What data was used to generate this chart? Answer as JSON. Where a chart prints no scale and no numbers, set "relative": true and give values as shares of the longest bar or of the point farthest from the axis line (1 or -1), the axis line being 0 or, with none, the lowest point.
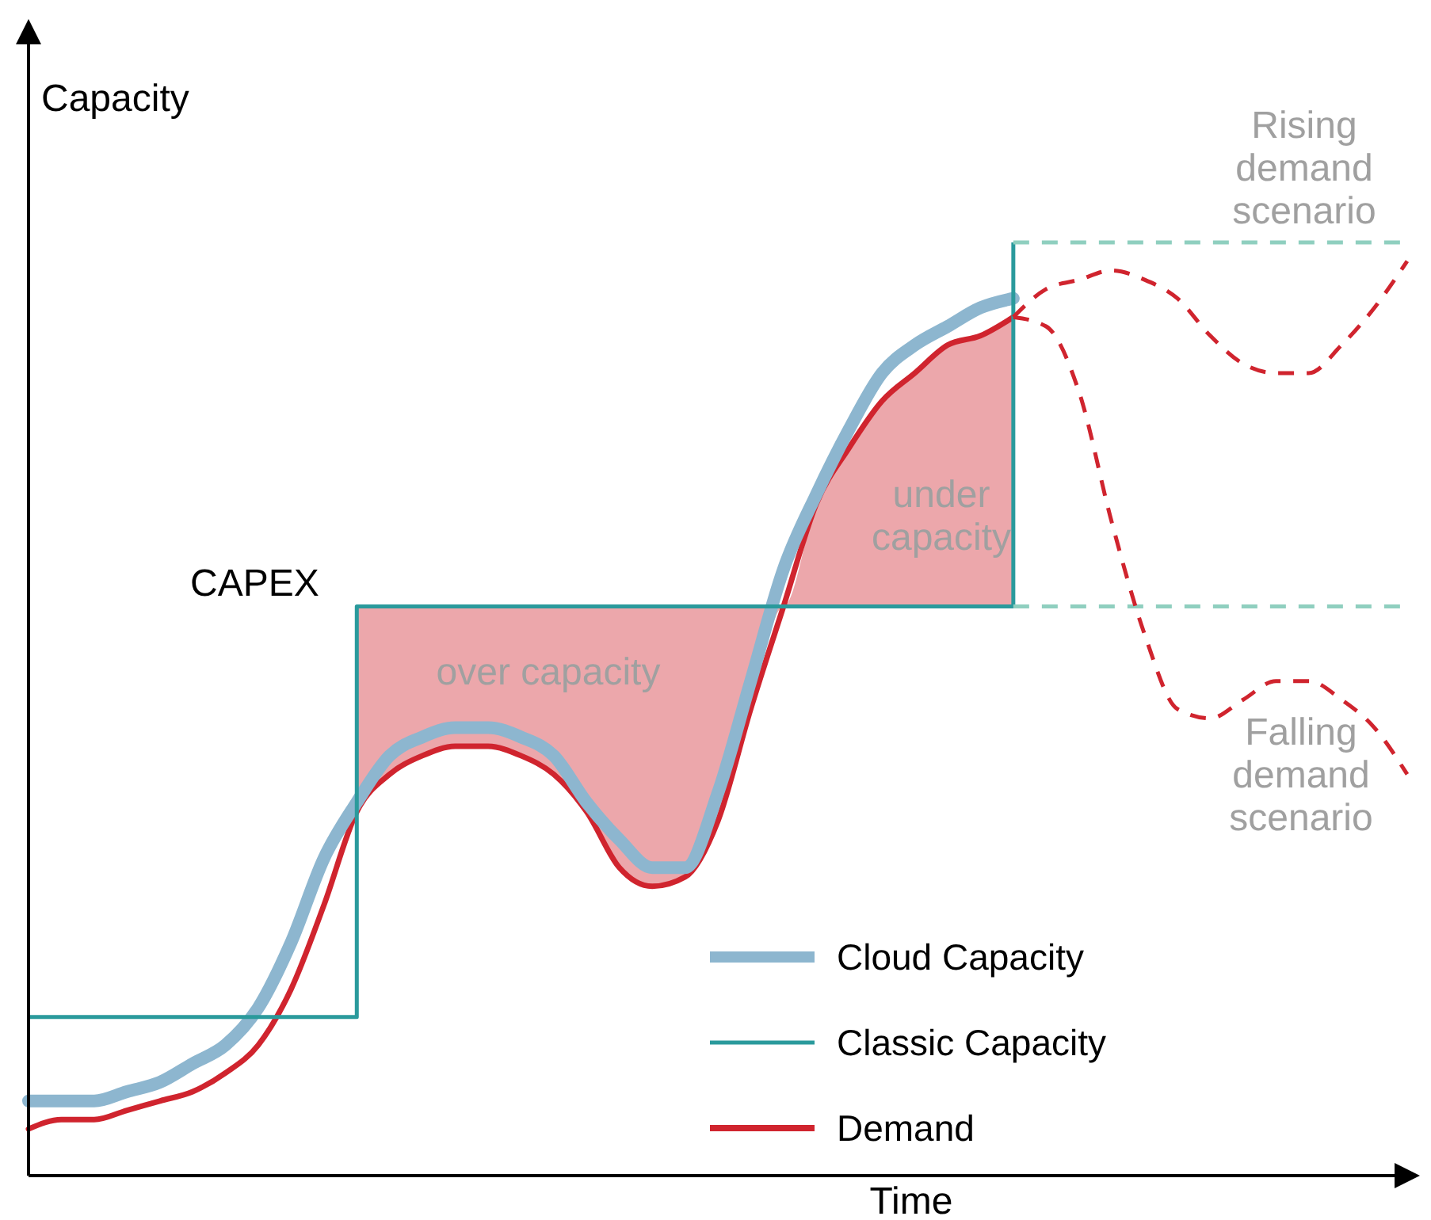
{
  "chart_data": {
    "type": "line",
    "relative": true,
    "xlabel": "Time",
    "ylabel": "Capacity",
    "legend": "bottom",
    "categories": [
      null,
      null,
      null,
      null,
      null,
      null,
      null,
      null,
      null,
      null,
      null,
      null,
      null,
      null,
      null,
      null,
      null,
      null,
      null,
      null,
      null,
      null,
      null,
      null,
      null,
      null,
      null,
      null,
      null,
      null,
      null,
      null,
      null,
      null,
      null,
      null,
      null,
      null,
      null,
      null,
      null,
      null,
      null
    ],
    "series": [
      {
        "name": "Demand",
        "color": "#d0242e",
        "line_style": "solid",
        "values": [
          0.05,
          0.06,
          0.06,
          0.07,
          0.08,
          0.09,
          0.11,
          0.14,
          0.2,
          0.29,
          0.39,
          0.43,
          0.45,
          0.46,
          0.46,
          0.45,
          0.43,
          0.39,
          0.33,
          0.31,
          0.32,
          0.38,
          0.5,
          0.61,
          0.72,
          0.78,
          0.83,
          0.86,
          0.89,
          0.9,
          0.92,
          null,
          null,
          null,
          null,
          null,
          null,
          null,
          null,
          null,
          null,
          null,
          null
        ],
        "upper": [
          null,
          null,
          null,
          null,
          null,
          null,
          null,
          null,
          null,
          null,
          0.61,
          0.61,
          0.61,
          0.61,
          0.61,
          0.61,
          0.61,
          0.61,
          0.61,
          0.61,
          0.61,
          0.61,
          0.61,
          0.61,
          0.72,
          0.78,
          0.83,
          0.86,
          0.89,
          0.9,
          0.92,
          null,
          null,
          null,
          null,
          null,
          null,
          null,
          null,
          null,
          null,
          null,
          null
        ],
        "lower": [
          null,
          null,
          null,
          null,
          null,
          null,
          null,
          null,
          null,
          null,
          0.39,
          0.43,
          0.45,
          0.46,
          0.46,
          0.45,
          0.43,
          0.39,
          0.33,
          0.31,
          0.32,
          0.38,
          0.5,
          0.61,
          0.61,
          0.61,
          0.61,
          0.61,
          0.61,
          0.61,
          0.61,
          null,
          null,
          null,
          null,
          null,
          null,
          null,
          null,
          null,
          null,
          null,
          null
        ]
      },
      {
        "name": "Cloud Capacity",
        "color": "#8db6cf",
        "line_style": "solid",
        "values": [
          0.08,
          0.08,
          0.08,
          0.09,
          0.1,
          0.12,
          0.14,
          0.18,
          0.25,
          0.34,
          0.4,
          0.45,
          0.47,
          0.48,
          0.48,
          0.47,
          0.45,
          0.4,
          0.36,
          0.33,
          0.33,
          0.41,
          0.53,
          0.65,
          0.73,
          0.8,
          0.86,
          0.89,
          0.91,
          0.93,
          0.94,
          null,
          null,
          null,
          null,
          null,
          null,
          null,
          null,
          null,
          null,
          null,
          null
        ]
      },
      {
        "type": "step",
        "name": "Classic Capacity",
        "color": "#2a9a9c",
        "line_style": "solid",
        "values": [
          0.17,
          0.17,
          0.17,
          0.17,
          0.17,
          0.17,
          0.17,
          0.17,
          0.17,
          0.17,
          0.61,
          0.61,
          0.61,
          0.61,
          0.61,
          0.61,
          0.61,
          0.61,
          0.61,
          0.61,
          0.61,
          0.61,
          0.61,
          0.61,
          0.61,
          0.61,
          0.61,
          0.61,
          0.61,
          0.61,
          1.0,
          null,
          null,
          null,
          null,
          null,
          null,
          null,
          null,
          null,
          null,
          null,
          null
        ]
      },
      {
        "type": "line",
        "color": "#8fcfbf",
        "line_style": "dashed",
        "values": [
          null,
          null,
          null,
          null,
          null,
          null,
          null,
          null,
          null,
          null,
          null,
          null,
          null,
          null,
          null,
          null,
          null,
          null,
          null,
          null,
          null,
          null,
          null,
          null,
          null,
          null,
          null,
          null,
          null,
          null,
          1.0,
          1.0,
          1.0,
          1.0,
          1.0,
          1.0,
          1.0,
          1.0,
          1.0,
          1.0,
          1.0,
          1.0,
          1.0
        ]
      },
      {
        "type": "line",
        "color": "#8fcfbf",
        "line_style": "dashed",
        "values": [
          null,
          null,
          null,
          null,
          null,
          null,
          null,
          null,
          null,
          null,
          null,
          null,
          null,
          null,
          null,
          null,
          null,
          null,
          null,
          null,
          null,
          null,
          null,
          null,
          null,
          null,
          null,
          null,
          null,
          null,
          0.61,
          0.61,
          0.61,
          0.61,
          0.61,
          0.61,
          0.61,
          0.61,
          0.61,
          0.61,
          0.61,
          0.61,
          0.61
        ]
      },
      {
        "type": "line",
        "color": "#d0242e",
        "line_style": "dashed",
        "values": [
          null,
          null,
          null,
          null,
          null,
          null,
          null,
          null,
          null,
          null,
          null,
          null,
          null,
          null,
          null,
          null,
          null,
          null,
          null,
          null,
          null,
          null,
          null,
          null,
          null,
          null,
          null,
          null,
          null,
          null,
          0.92,
          0.95,
          0.96,
          0.97,
          0.96,
          0.94,
          0.9,
          0.87,
          0.86,
          0.86,
          0.89,
          0.93,
          0.98
        ]
      },
      {
        "type": "line",
        "color": "#d0242e",
        "line_style": "dashed",
        "values": [
          null,
          null,
          null,
          null,
          null,
          null,
          null,
          null,
          null,
          null,
          null,
          null,
          null,
          null,
          null,
          null,
          null,
          null,
          null,
          null,
          null,
          null,
          null,
          null,
          null,
          null,
          null,
          null,
          null,
          null,
          0.92,
          0.91,
          0.84,
          0.7,
          0.58,
          0.5,
          0.49,
          0.51,
          0.53,
          0.53,
          0.51,
          0.48,
          0.43
        ]
      }
    ],
    "annotations": [
      "CAPEX",
      "over capacity",
      "under capacity",
      "Rising demand scenario",
      "Falling demand scenario"
    ]
  }
}
